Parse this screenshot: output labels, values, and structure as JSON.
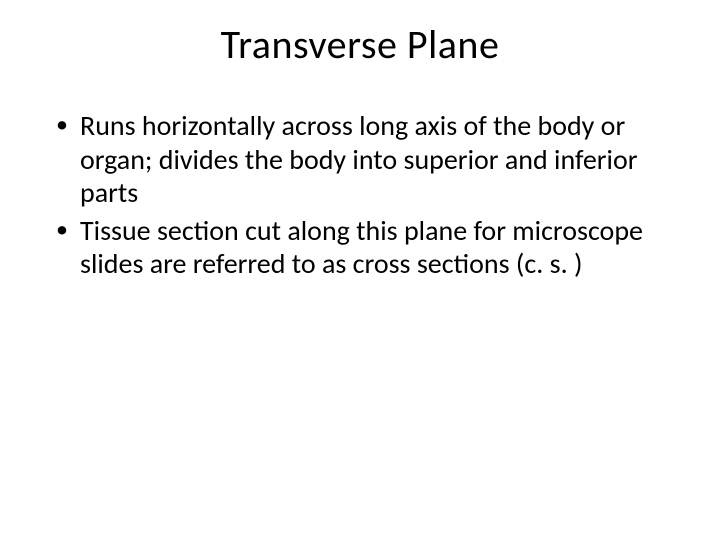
{
  "slide": {
    "title": "Transverse Plane",
    "bullets": [
      "Runs horizontally across long axis of the body or organ; divides the body into superior and inferior parts",
      "Tissue section cut along this plane for microscope slides are referred to as cross sections (c. s. )"
    ]
  },
  "style": {
    "background_color": "#ffffff",
    "text_color": "#000000",
    "title_fontsize": 40,
    "body_fontsize": 28,
    "font_family": "Calibri"
  }
}
